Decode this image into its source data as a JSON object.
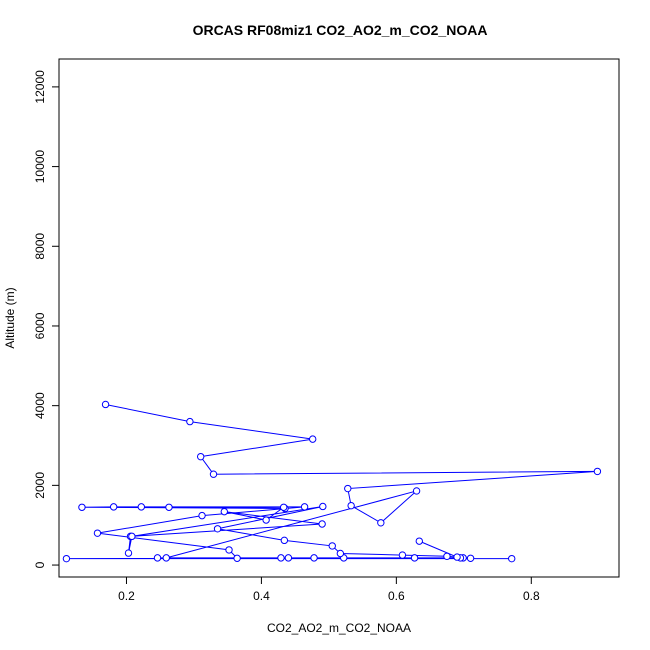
{
  "chart_data": {
    "type": "line",
    "title": "ORCAS RF08miz1 CO2_AO2_m_CO2_NOAA",
    "xlabel": "CO2_AO2_m_CO2_NOAA",
    "ylabel": "Altitude (m)",
    "xlim": [
      0.1,
      0.93
    ],
    "ylim": [
      -300,
      12700
    ],
    "xticks": [
      0.2,
      0.4,
      0.6,
      0.8
    ],
    "xtick_labels": [
      "0.2",
      "0.4",
      "0.6",
      "0.8"
    ],
    "yticks": [
      0,
      2000,
      4000,
      6000,
      8000,
      10000,
      12000
    ],
    "ytick_labels": [
      "0",
      "2000",
      "4000",
      "6000",
      "8000",
      "10000",
      "12000"
    ],
    "grid": false,
    "legend": "none",
    "series": [
      {
        "color": "#0000ff",
        "marker": "open-circle",
        "points": [
          [
            0.169,
            4030
          ],
          [
            0.294,
            3600
          ],
          [
            0.476,
            3160
          ],
          [
            0.31,
            2720
          ],
          [
            0.329,
            2280
          ],
          [
            0.898,
            2350
          ],
          [
            0.528,
            1920
          ],
          [
            0.533,
            1490
          ],
          [
            0.577,
            1060
          ],
          [
            0.63,
            1860
          ],
          [
            0.259,
            180
          ],
          [
            0.627,
            180
          ],
          [
            0.699,
            180
          ],
          [
            0.695,
            180
          ],
          [
            0.111,
            160
          ],
          [
            0.771,
            160
          ],
          [
            0.246,
            180
          ],
          [
            0.478,
            180
          ],
          [
            0.522,
            180
          ],
          [
            0.44,
            180
          ],
          [
            0.429,
            180
          ],
          [
            0.364,
            170
          ],
          [
            0.352,
            380
          ],
          [
            0.157,
            800
          ],
          [
            0.312,
            1240
          ],
          [
            0.464,
            1460
          ],
          [
            0.181,
            1460
          ],
          [
            0.134,
            1450
          ],
          [
            0.435,
            1420
          ],
          [
            0.222,
            1460
          ],
          [
            0.263,
            1450
          ],
          [
            0.433,
            1450
          ],
          [
            0.407,
            1130
          ],
          [
            0.345,
            1340
          ],
          [
            0.49,
            1030
          ],
          [
            0.206,
            720
          ],
          [
            0.203,
            300
          ],
          [
            0.208,
            720
          ],
          [
            0.491,
            1470
          ],
          [
            0.335,
            910
          ],
          [
            0.434,
            620
          ],
          [
            0.505,
            480
          ],
          [
            0.517,
            290
          ],
          [
            0.609,
            250
          ],
          [
            0.675,
            220
          ],
          [
            0.71,
            170
          ],
          [
            0.69,
            200
          ],
          [
            0.634,
            600
          ]
        ]
      }
    ]
  }
}
